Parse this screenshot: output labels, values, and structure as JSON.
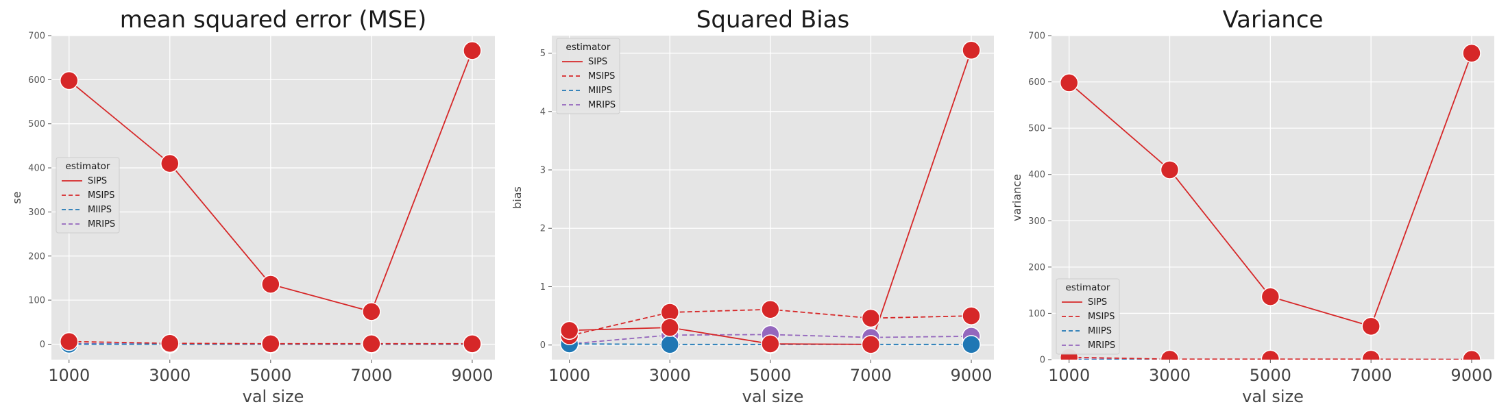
{
  "figure": {
    "background": "#ffffff",
    "plot_background": "#e5e5e5",
    "grid_color": "#ffffff"
  },
  "chart_data": [
    {
      "type": "line",
      "title": "mean squared error (MSE)",
      "xlabel": "val size",
      "ylabel": "se",
      "x": [
        1000,
        3000,
        5000,
        7000,
        9000
      ],
      "xticks": [
        "1000",
        "3000",
        "5000",
        "7000",
        "9000"
      ],
      "xlim": [
        650,
        9450
      ],
      "ylim": [
        -35,
        700
      ],
      "yticks": [
        0,
        100,
        200,
        300,
        400,
        500,
        600,
        700
      ],
      "grid": true,
      "legend": {
        "title": "estimator",
        "position": "center-left"
      },
      "series": [
        {
          "name": "SIPS",
          "color": "#d62728",
          "dash": "solid",
          "values": [
            598,
            410,
            136,
            74,
            666
          ]
        },
        {
          "name": "MSIPS",
          "color": "#d62728",
          "dash": "dashed",
          "values": [
            6,
            2,
            1,
            1,
            1
          ]
        },
        {
          "name": "MIIPS",
          "color": "#1f77b4",
          "dash": "dashed",
          "values": [
            0,
            0,
            0,
            0,
            0
          ]
        },
        {
          "name": "MRIPS",
          "color": "#9467bd",
          "dash": "dashed",
          "values": [
            1,
            0.5,
            0.5,
            0.5,
            0.5
          ]
        }
      ]
    },
    {
      "type": "line",
      "title": "Squared Bias",
      "xlabel": "val size",
      "ylabel": "bias",
      "x": [
        1000,
        3000,
        5000,
        7000,
        9000
      ],
      "xticks": [
        "1000",
        "3000",
        "5000",
        "7000",
        "9000"
      ],
      "xlim": [
        650,
        9450
      ],
      "ylim": [
        -0.25,
        5.3
      ],
      "yticks": [
        0,
        1,
        2,
        3,
        4,
        5
      ],
      "grid": true,
      "legend": {
        "title": "estimator",
        "position": "top-left"
      },
      "series": [
        {
          "name": "SIPS",
          "color": "#d62728",
          "dash": "solid",
          "values": [
            0.25,
            0.3,
            0.02,
            0.01,
            5.05
          ]
        },
        {
          "name": "MSIPS",
          "color": "#d62728",
          "dash": "dashed",
          "values": [
            0.16,
            0.56,
            0.61,
            0.46,
            0.5
          ]
        },
        {
          "name": "MIIPS",
          "color": "#1f77b4",
          "dash": "dashed",
          "values": [
            0.02,
            0.01,
            0.01,
            0.01,
            0.01
          ]
        },
        {
          "name": "MRIPS",
          "color": "#9467bd",
          "dash": "dashed",
          "values": [
            0.02,
            0.17,
            0.18,
            0.13,
            0.15
          ]
        }
      ]
    },
    {
      "type": "line",
      "title": "Variance",
      "xlabel": "val size",
      "ylabel": "variance",
      "x": [
        1000,
        3000,
        5000,
        7000,
        9000
      ],
      "xticks": [
        "1000",
        "3000",
        "5000",
        "7000",
        "9000"
      ],
      "xlim": [
        650,
        9450
      ],
      "ylim": [
        0,
        700
      ],
      "yticks": [
        0,
        100,
        200,
        300,
        400,
        500,
        600,
        700
      ],
      "grid": true,
      "legend": {
        "title": "estimator",
        "position": "bottom-left"
      },
      "series": [
        {
          "name": "SIPS",
          "color": "#d62728",
          "dash": "solid",
          "values": [
            598,
            410,
            136,
            72,
            662
          ]
        },
        {
          "name": "MSIPS",
          "color": "#d62728",
          "dash": "dashed",
          "values": [
            5,
            1,
            1,
            1,
            0.5
          ]
        },
        {
          "name": "MIIPS",
          "color": "#1f77b4",
          "dash": "dashed",
          "values": [
            0,
            0,
            0,
            0,
            0
          ]
        },
        {
          "name": "MRIPS",
          "color": "#9467bd",
          "dash": "dashed",
          "values": [
            1,
            0.5,
            0.5,
            0.5,
            0.5
          ]
        }
      ]
    }
  ]
}
